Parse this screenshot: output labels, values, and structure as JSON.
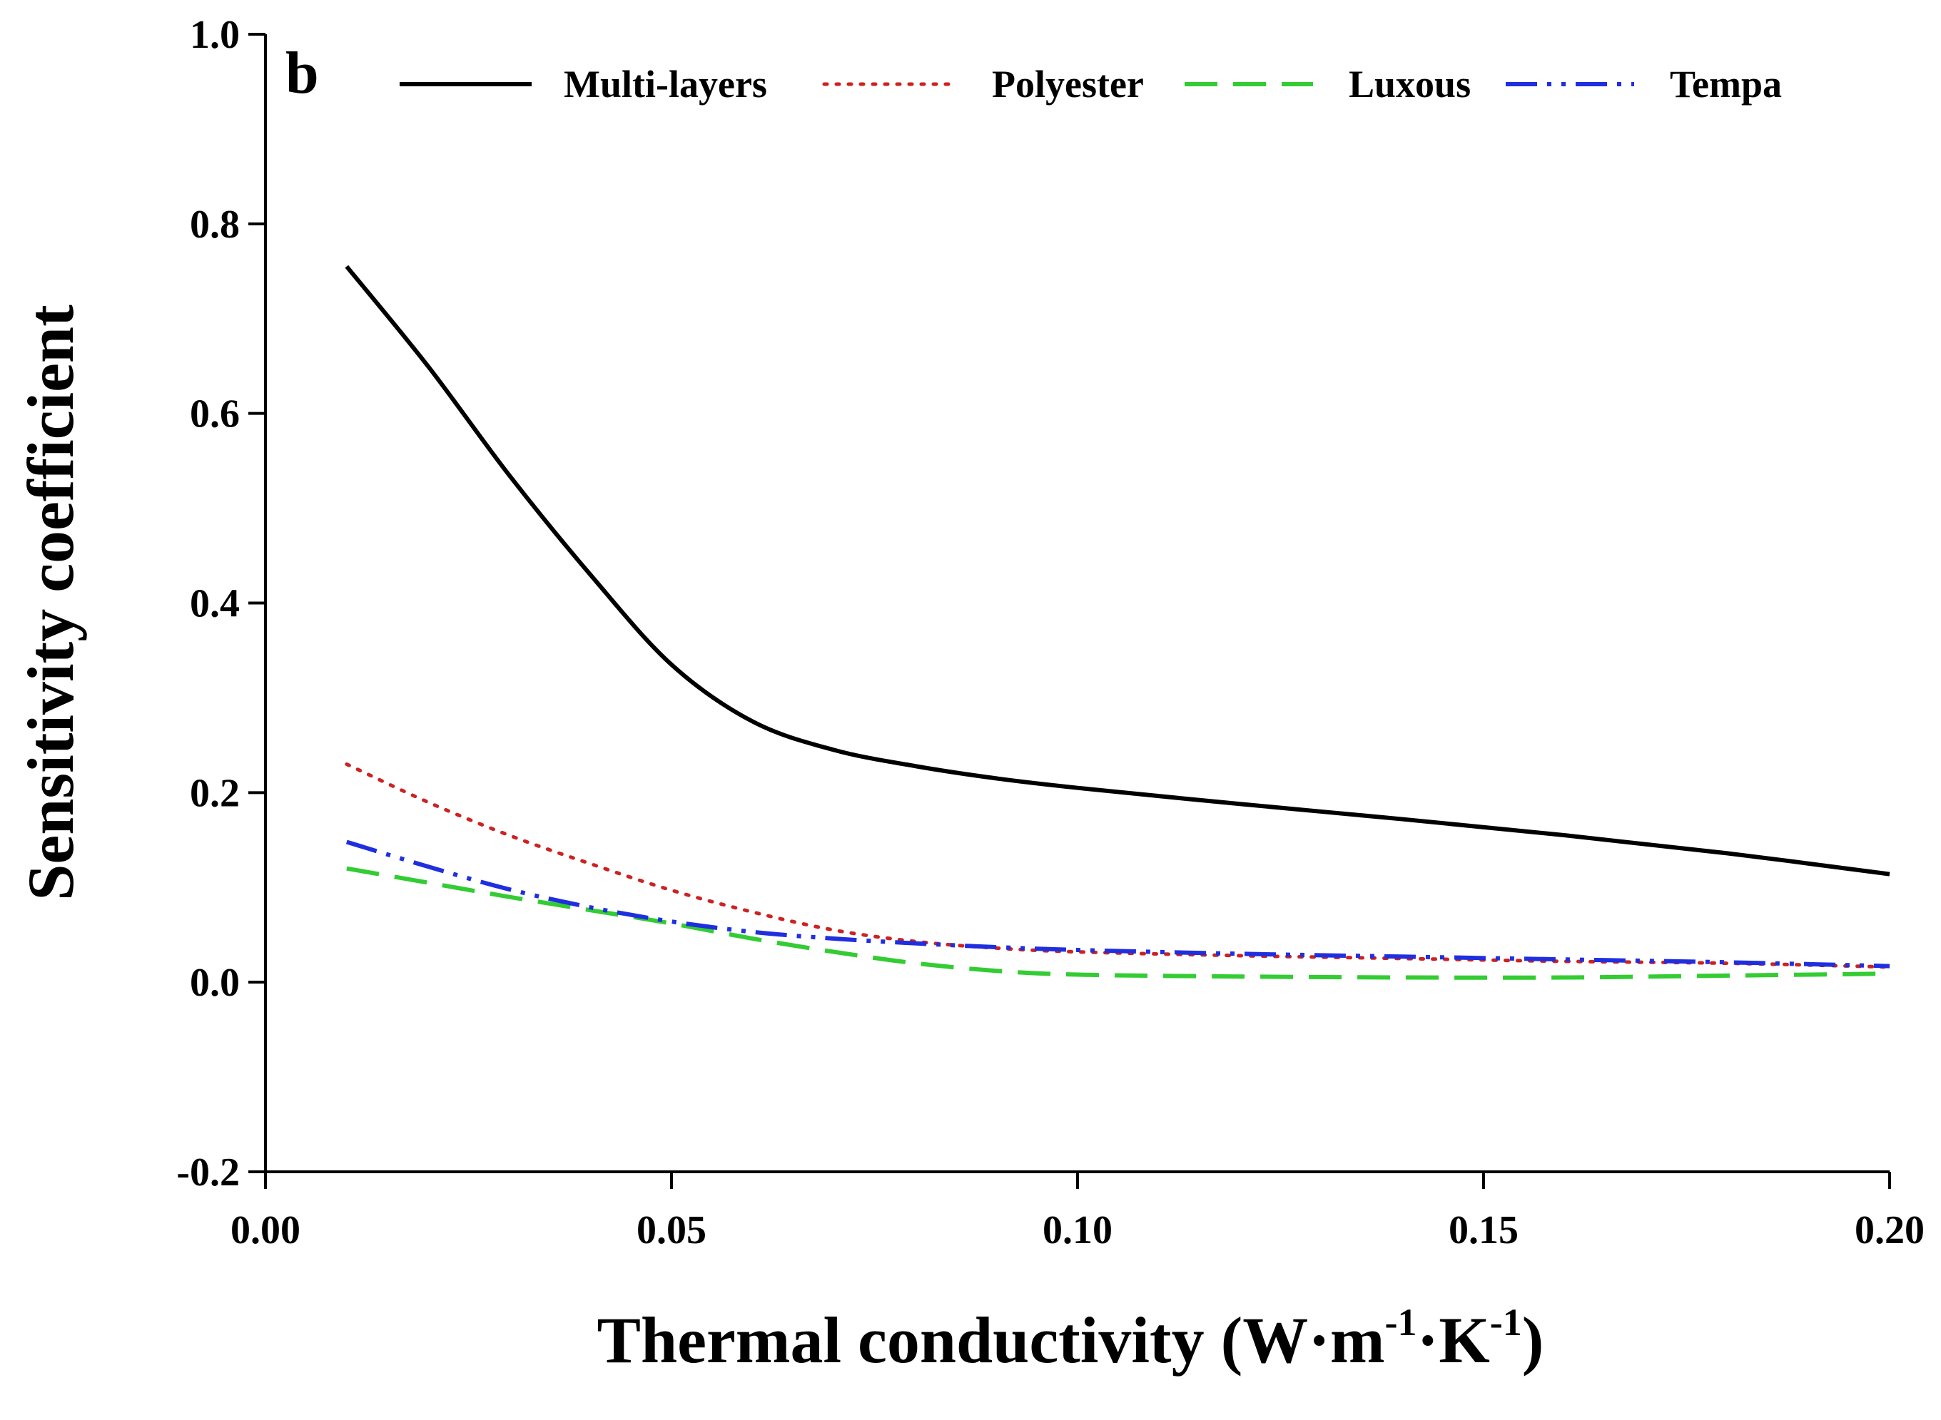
{
  "chart_data": {
    "type": "line",
    "panel_label": "b",
    "title": "",
    "xlabel": "Thermal conductivity (W·m⁻¹·K⁻¹)",
    "xlabel_parts": {
      "base": "Thermal conductivity (W·m",
      "sup1": "-1",
      "mid": "·K",
      "sup2": "-1",
      "end": ")"
    },
    "ylabel": "Sensitivity coefficient",
    "xlim": [
      0.0,
      0.2
    ],
    "ylim": [
      -0.2,
      1.0
    ],
    "xticks": [
      0.0,
      0.05,
      0.1,
      0.15,
      0.2
    ],
    "xtick_labels": [
      "0.00",
      "0.05",
      "0.10",
      "0.15",
      "0.20"
    ],
    "yticks": [
      -0.2,
      0.0,
      0.2,
      0.4,
      0.6,
      0.8,
      1.0
    ],
    "ytick_labels": [
      "-0.2",
      "0.0",
      "0.2",
      "0.4",
      "0.6",
      "0.8",
      "1.0"
    ],
    "grid": false,
    "legend_position": "top",
    "x": [
      0.01,
      0.02,
      0.03,
      0.04,
      0.05,
      0.06,
      0.07,
      0.08,
      0.09,
      0.1,
      0.12,
      0.14,
      0.16,
      0.18,
      0.2
    ],
    "series": [
      {
        "name": "Multi-layers",
        "color": "#000000",
        "style": "solid",
        "values": [
          0.755,
          0.65,
          0.535,
          0.43,
          0.335,
          0.275,
          0.245,
          0.228,
          0.215,
          0.205,
          0.188,
          0.172,
          0.155,
          0.136,
          0.114
        ]
      },
      {
        "name": "Polyester",
        "color": "#cc2222",
        "style": "dotted",
        "values": [
          0.23,
          0.19,
          0.155,
          0.125,
          0.097,
          0.074,
          0.055,
          0.043,
          0.036,
          0.032,
          0.028,
          0.025,
          0.022,
          0.02,
          0.016
        ]
      },
      {
        "name": "Luxous",
        "color": "#33cc33",
        "style": "dashed",
        "values": [
          0.12,
          0.105,
          0.09,
          0.076,
          0.062,
          0.046,
          0.032,
          0.02,
          0.012,
          0.008,
          0.006,
          0.005,
          0.005,
          0.007,
          0.009
        ]
      },
      {
        "name": "Tempa",
        "color": "#1f2fe0",
        "style": "dashdotdot",
        "values": [
          0.148,
          0.122,
          0.098,
          0.079,
          0.064,
          0.053,
          0.046,
          0.041,
          0.037,
          0.034,
          0.03,
          0.027,
          0.024,
          0.021,
          0.017
        ]
      }
    ]
  }
}
